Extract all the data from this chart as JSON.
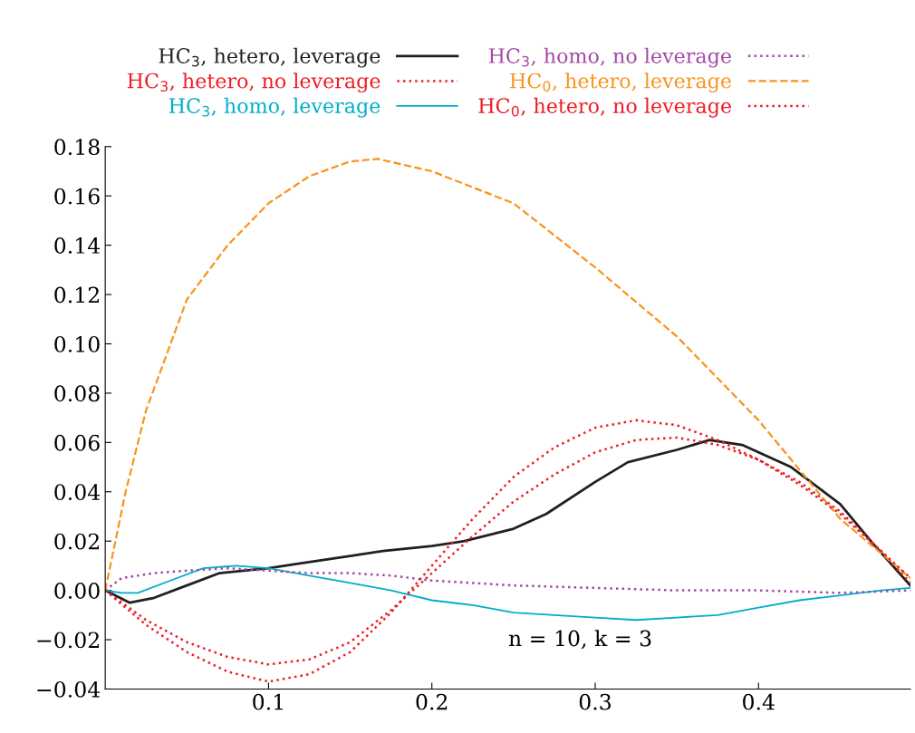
{
  "chart_data": {
    "type": "line",
    "legend": "top",
    "grid": false,
    "marker": "none",
    "xlim": [
      0,
      0.493
    ],
    "xticks": [
      0.1,
      0.2,
      0.3,
      0.4
    ],
    "ylim": [
      -0.04,
      0.18
    ],
    "yticks": [
      {
        "value": -0.04,
        "label": "−0.04"
      },
      {
        "value": -0.02,
        "label": "−0.02"
      },
      {
        "value": 0,
        "label": "0.00"
      },
      {
        "value": 0.02,
        "label": "0.02"
      },
      {
        "value": 0.04,
        "label": "0.04"
      },
      {
        "value": 0.06,
        "label": "0.06"
      },
      {
        "value": 0.08,
        "label": "0.08"
      },
      {
        "value": 0.1,
        "label": "0.10"
      },
      {
        "value": 0.12,
        "label": "0.12"
      },
      {
        "value": 0.14,
        "label": "0.14"
      },
      {
        "value": 0.16,
        "label": "0.16"
      },
      {
        "value": 0.18,
        "label": "0.18"
      }
    ],
    "annotations": [
      "n = 10, k = 3"
    ],
    "series": [
      {
        "name": "HC$_{3}$, hetero, leverage",
        "color": "#231f20",
        "line_style": "solid",
        "x": [
          0,
          0.015,
          0.03,
          0.05,
          0.07,
          0.1,
          0.12,
          0.15,
          0.17,
          0.2,
          0.22,
          0.25,
          0.27,
          0.3,
          0.32,
          0.35,
          0.37,
          0.39,
          0.42,
          0.45,
          0.47,
          0.493
        ],
        "values": [
          0,
          -0.005,
          -0.003,
          0.002,
          0.007,
          0.009,
          0.011,
          0.014,
          0.016,
          0.018,
          0.02,
          0.025,
          0.031,
          0.044,
          0.052,
          0.057,
          0.061,
          0.059,
          0.05,
          0.035,
          0.019,
          0.002
        ]
      },
      {
        "name": "HC$_{3}$, hetero, no leverage",
        "color": "#ed1c24",
        "line_style": "dotted",
        "x": [
          0,
          0.025,
          0.05,
          0.075,
          0.1,
          0.125,
          0.15,
          0.175,
          0.2,
          0.225,
          0.25,
          0.275,
          0.3,
          0.325,
          0.35,
          0.375,
          0.4,
          0.425,
          0.45,
          0.475,
          0.493
        ],
        "values": [
          0,
          -0.012,
          -0.021,
          -0.027,
          -0.03,
          -0.028,
          -0.021,
          -0.008,
          0.007,
          0.022,
          0.036,
          0.047,
          0.056,
          0.061,
          0.062,
          0.059,
          0.053,
          0.044,
          0.032,
          0.016,
          0.003
        ]
      },
      {
        "name": "HC$_{3}$, homo, leverage",
        "color": "#00aec8",
        "line_style": "solid",
        "x": [
          0,
          0.01,
          0.02,
          0.04,
          0.06,
          0.08,
          0.1,
          0.125,
          0.15,
          0.175,
          0.2,
          0.225,
          0.25,
          0.275,
          0.3,
          0.325,
          0.35,
          0.375,
          0.4,
          0.425,
          0.45,
          0.475,
          0.493
        ],
        "values": [
          0,
          -0.001,
          -0.001,
          0.004,
          0.009,
          0.01,
          0.009,
          0.006,
          0.003,
          0.0,
          -0.004,
          -0.006,
          -0.009,
          -0.01,
          -0.011,
          -0.012,
          -0.011,
          -0.01,
          -0.007,
          -0.004,
          -0.002,
          0.0,
          0.001
        ]
      },
      {
        "name": "HC$_{3}$, homo, no leverage",
        "color": "#a349a4",
        "line_style": "dotted",
        "x": [
          0,
          0.01,
          0.03,
          0.05,
          0.075,
          0.1,
          0.125,
          0.15,
          0.175,
          0.2,
          0.25,
          0.3,
          0.35,
          0.4,
          0.45,
          0.493
        ],
        "values": [
          0,
          0.005,
          0.007,
          0.008,
          0.009,
          0.008,
          0.007,
          0.007,
          0.006,
          0.004,
          0.002,
          0.001,
          0.0,
          0.0,
          -0.001,
          0.0
        ]
      },
      {
        "name": "HC$_{0}$, hetero, leverage",
        "color": "#f7941d",
        "line_style": "dashed",
        "x": [
          0,
          0.0125,
          0.025,
          0.05,
          0.075,
          0.1,
          0.125,
          0.15,
          0.167,
          0.2,
          0.25,
          0.3,
          0.35,
          0.4,
          0.45,
          0.493
        ],
        "values": [
          0,
          0.04,
          0.073,
          0.118,
          0.14,
          0.157,
          0.168,
          0.174,
          0.175,
          0.17,
          0.157,
          0.131,
          0.103,
          0.069,
          0.029,
          0.005
        ]
      },
      {
        "name": "HC$_{0}$, hetero, no leverage",
        "color": "#ed1c24",
        "line_style": "dotted",
        "x": [
          0,
          0.025,
          0.05,
          0.075,
          0.1,
          0.125,
          0.15,
          0.175,
          0.2,
          0.225,
          0.25,
          0.275,
          0.3,
          0.325,
          0.35,
          0.375,
          0.4,
          0.425,
          0.45,
          0.475,
          0.493
        ],
        "values": [
          0,
          -0.014,
          -0.025,
          -0.033,
          -0.037,
          -0.034,
          -0.025,
          -0.009,
          0.01,
          0.029,
          0.046,
          0.058,
          0.066,
          0.069,
          0.067,
          0.061,
          0.053,
          0.043,
          0.031,
          0.016,
          0.005
        ]
      }
    ]
  }
}
